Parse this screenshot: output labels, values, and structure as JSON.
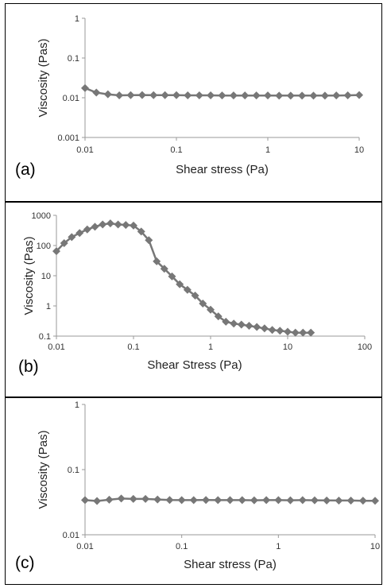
{
  "chart_data": [
    {
      "type": "line",
      "panel_label": "(a)",
      "xlabel": "Shear stress (Pa)",
      "ylabel": "Viscosity (Pas)",
      "xscale": "log",
      "yscale": "log",
      "xlim": [
        0.01,
        10
      ],
      "ylim": [
        0.001,
        1
      ],
      "xticks": [
        "0.01",
        "0.1",
        "1",
        "10"
      ],
      "yticks": [
        "0.001",
        "0.01",
        "0.1",
        "1"
      ],
      "color": "#777777",
      "marker": "diamond",
      "series": [
        {
          "x": [
            0.01,
            0.0133,
            0.0178,
            0.0237,
            0.0316,
            0.0422,
            0.0562,
            0.075,
            0.1,
            0.133,
            0.178,
            0.237,
            0.316,
            0.422,
            0.562,
            0.75,
            1.0,
            1.33,
            1.78,
            2.37,
            3.16,
            4.22,
            5.62,
            7.5,
            10
          ],
          "y": [
            0.0175,
            0.0135,
            0.0122,
            0.0115,
            0.0116,
            0.0117,
            0.0116,
            0.0116,
            0.0116,
            0.0115,
            0.0115,
            0.0115,
            0.0114,
            0.0114,
            0.0114,
            0.0114,
            0.0114,
            0.0113,
            0.0113,
            0.0113,
            0.0113,
            0.0113,
            0.0114,
            0.0115,
            0.0117
          ]
        }
      ]
    },
    {
      "type": "line",
      "panel_label": "(b)",
      "xlabel": "Shear Stress (Pa)",
      "ylabel": "Viscosity (Pas)",
      "xscale": "log",
      "yscale": "log",
      "xlim": [
        0.01,
        100
      ],
      "ylim": [
        0.1,
        1000
      ],
      "xticks": [
        "0.01",
        "0.1",
        "1",
        "10",
        "100"
      ],
      "yticks": [
        "0.1",
        "1",
        "10",
        "100",
        "1000"
      ],
      "color": "#777777",
      "marker": "diamond",
      "series": [
        {
          "x": [
            0.01,
            0.0126,
            0.0158,
            0.02,
            0.0251,
            0.0316,
            0.0398,
            0.0501,
            0.0631,
            0.0794,
            0.1,
            0.126,
            0.158,
            0.2,
            0.251,
            0.316,
            0.398,
            0.501,
            0.631,
            0.794,
            1.0,
            1.26,
            1.58,
            2.0,
            2.51,
            3.16,
            3.98,
            5.01,
            6.31,
            7.94,
            10.0,
            12.6,
            15.8,
            20.0
          ],
          "y": [
            65,
            120,
            190,
            260,
            340,
            420,
            500,
            540,
            500,
            480,
            460,
            290,
            150,
            30,
            17,
            9.5,
            5.2,
            3.4,
            2.2,
            1.2,
            0.75,
            0.45,
            0.3,
            0.26,
            0.24,
            0.22,
            0.2,
            0.18,
            0.16,
            0.15,
            0.14,
            0.13,
            0.13,
            0.13
          ]
        }
      ]
    },
    {
      "type": "line",
      "panel_label": "(c)",
      "xlabel": "Shear stress (Pa)",
      "ylabel": "Viscosity (Pas)",
      "xscale": "log",
      "yscale": "log",
      "xlim": [
        0.01,
        10
      ],
      "ylim": [
        0.01,
        1
      ],
      "xticks": [
        "0.01",
        "0.1",
        "1",
        "10"
      ],
      "yticks": [
        "0.01",
        "0.1",
        "1"
      ],
      "color": "#777777",
      "marker": "diamond",
      "series": [
        {
          "x": [
            0.01,
            0.0133,
            0.0178,
            0.0237,
            0.0316,
            0.0422,
            0.0562,
            0.075,
            0.1,
            0.133,
            0.178,
            0.237,
            0.316,
            0.422,
            0.562,
            0.75,
            1.0,
            1.33,
            1.78,
            2.37,
            3.16,
            4.22,
            5.62,
            7.5,
            10
          ],
          "y": [
            0.034,
            0.033,
            0.0345,
            0.036,
            0.0355,
            0.0355,
            0.0348,
            0.0342,
            0.034,
            0.034,
            0.0342,
            0.034,
            0.034,
            0.034,
            0.0338,
            0.034,
            0.034,
            0.0338,
            0.034,
            0.0338,
            0.0336,
            0.0335,
            0.0335,
            0.0333,
            0.0332
          ]
        }
      ]
    }
  ]
}
